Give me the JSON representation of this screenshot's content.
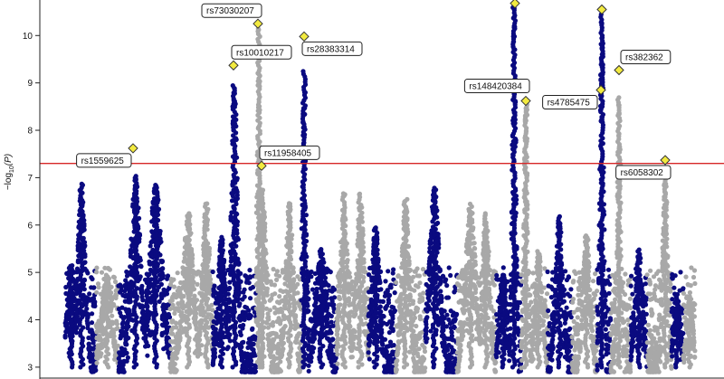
{
  "chart_data": {
    "type": "scatter",
    "subtype": "manhattan",
    "title": "",
    "xlabel": "",
    "ylabel_parts": {
      "prefix": "−log",
      "sub": "10",
      "suffix": "(P)"
    },
    "ylim": [
      2.75,
      10.75
    ],
    "yticks": [
      3,
      4,
      5,
      6,
      7,
      8,
      9,
      10
    ],
    "ytick_labels": [
      "3",
      "4",
      "5",
      "6",
      "7",
      "8",
      "9",
      "10"
    ],
    "threshold": {
      "value": 7.3,
      "color": "#d62728"
    },
    "colors": {
      "odd": "#0a0a80",
      "even": "#a8a8a8",
      "lead_snp": "#f2ea40",
      "lead_snp_edge": "#333333"
    },
    "chromosomes": [
      {
        "id": 1,
        "x0": 72,
        "x1": 106,
        "peaks": [
          {
            "x": 90,
            "max": 6.9,
            "width": 6
          },
          {
            "x": 78,
            "max": 5.2,
            "width": 6
          }
        ]
      },
      {
        "id": 2,
        "x0": 106,
        "x1": 131,
        "peaks": [
          {
            "x": 118,
            "max": 5.0,
            "width": 8
          }
        ]
      },
      {
        "id": 3,
        "x0": 131,
        "x1": 188,
        "peaks": [
          {
            "x": 150,
            "max": 7.05,
            "width": 8
          },
          {
            "x": 172,
            "max": 6.9,
            "width": 10
          }
        ]
      },
      {
        "id": 4,
        "x0": 188,
        "x1": 235,
        "peaks": [
          {
            "x": 208,
            "max": 6.3,
            "width": 8
          },
          {
            "x": 228,
            "max": 6.5,
            "width": 6
          }
        ]
      },
      {
        "id": 5,
        "x0": 235,
        "x1": 283,
        "peaks": [
          {
            "x": 259,
            "max": 9.0,
            "width": 5
          },
          {
            "x": 245,
            "max": 5.8,
            "width": 6
          }
        ]
      },
      {
        "id": 6,
        "x0": 283,
        "x1": 333,
        "peaks": [
          {
            "x": 286,
            "max": 10.2,
            "width": 3
          },
          {
            "x": 290,
            "max": 6.8,
            "width": 6
          },
          {
            "x": 320,
            "max": 6.5,
            "width": 6
          }
        ]
      },
      {
        "id": 7,
        "x0": 333,
        "x1": 372,
        "peaks": [
          {
            "x": 336,
            "max": 9.3,
            "width": 3
          },
          {
            "x": 355,
            "max": 5.5,
            "width": 8
          }
        ]
      },
      {
        "id": 8,
        "x0": 372,
        "x1": 407,
        "peaks": [
          {
            "x": 380,
            "max": 6.7,
            "width": 6
          },
          {
            "x": 398,
            "max": 6.7,
            "width": 6
          }
        ]
      },
      {
        "id": 9,
        "x0": 407,
        "x1": 437,
        "peaks": [
          {
            "x": 415,
            "max": 6.0,
            "width": 6
          }
        ]
      },
      {
        "id": 10,
        "x0": 437,
        "x1": 470,
        "peaks": [
          {
            "x": 448,
            "max": 6.6,
            "width": 6
          }
        ]
      },
      {
        "id": 11,
        "x0": 470,
        "x1": 505,
        "peaks": [
          {
            "x": 480,
            "max": 6.8,
            "width": 8
          }
        ]
      },
      {
        "id": 12,
        "x0": 505,
        "x1": 548,
        "peaks": [
          {
            "x": 520,
            "max": 6.5,
            "width": 8
          },
          {
            "x": 537,
            "max": 6.3,
            "width": 6
          }
        ]
      },
      {
        "id": 13,
        "x0": 548,
        "x1": 576,
        "peaks": [
          {
            "x": 568,
            "max": 10.7,
            "width": 3
          },
          {
            "x": 556,
            "max": 5.0,
            "width": 6
          }
        ]
      },
      {
        "id": 14,
        "x0": 576,
        "x1": 605,
        "peaks": [
          {
            "x": 581,
            "max": 8.6,
            "width": 3
          },
          {
            "x": 595,
            "max": 5.5,
            "width": 6
          }
        ]
      },
      {
        "id": 15,
        "x0": 605,
        "x1": 632,
        "peaks": [
          {
            "x": 618,
            "max": 6.2,
            "width": 6
          }
        ]
      },
      {
        "id": 16,
        "x0": 632,
        "x1": 660,
        "peaks": [
          {
            "x": 648,
            "max": 5.8,
            "width": 6
          }
        ]
      },
      {
        "id": 17,
        "x0": 660,
        "x1": 675,
        "peaks": [
          {
            "x": 665,
            "max": 10.5,
            "width": 3
          }
        ]
      },
      {
        "id": 18,
        "x0": 675,
        "x1": 697,
        "peaks": [
          {
            "x": 684,
            "max": 8.7,
            "width": 3
          }
        ]
      },
      {
        "id": 19,
        "x0": 697,
        "x1": 715,
        "peaks": [
          {
            "x": 706,
            "max": 5.5,
            "width": 6
          }
        ]
      },
      {
        "id": 20,
        "x0": 715,
        "x1": 742,
        "peaks": [
          {
            "x": 735,
            "max": 7.2,
            "width": 4
          }
        ]
      },
      {
        "id": 21,
        "x0": 742,
        "x1": 755,
        "peaks": [
          {
            "x": 748,
            "max": 4.5,
            "width": 5
          }
        ]
      },
      {
        "id": 22,
        "x0": 755,
        "x1": 768,
        "peaks": [
          {
            "x": 762,
            "max": 4.5,
            "width": 5
          }
        ]
      }
    ],
    "lead_snps": [
      {
        "id": "rs1559625",
        "chr": 3,
        "x": 147,
        "p": 7.62
      },
      {
        "id": "rs10010217",
        "chr": 5,
        "x": 258,
        "p": 9.37
      },
      {
        "id": "rs73030207",
        "chr": 6,
        "x": 285,
        "p": 10.25
      },
      {
        "id": "rs11958405",
        "chr": 6,
        "x": 289,
        "p": 7.25
      },
      {
        "id": "rs28383314",
        "chr": 7,
        "x": 336,
        "p": 9.98
      },
      {
        "id": "rs148420384",
        "chr": 14,
        "x": 581,
        "p": 8.62
      },
      {
        "id": "rs4785475",
        "chr": 17,
        "x": 664,
        "p": 8.85
      },
      {
        "id": "rs382362",
        "chr": 18,
        "x": 684,
        "p": 9.27
      },
      {
        "id": "rs6058302",
        "chr": 20,
        "x": 735,
        "p": 7.37
      },
      {
        "id": "",
        "chr": 13,
        "x": 569,
        "p": 10.68
      },
      {
        "id": "",
        "chr": 17,
        "x": 665,
        "p": 10.55
      }
    ],
    "annotations": [
      {
        "text": "rs73030207",
        "snp": 2
      },
      {
        "text": "rs10010217",
        "snp": 1
      },
      {
        "text": "rs28383314",
        "snp": 4
      },
      {
        "text": "rs11958405",
        "snp": 3
      },
      {
        "text": "rs1559625",
        "snp": 0
      },
      {
        "text": "rs148420384",
        "snp": 5
      },
      {
        "text": "rs382362",
        "snp": 7
      },
      {
        "text": "rs4785475",
        "snp": 6
      },
      {
        "text": "rs6058302",
        "snp": 8
      }
    ]
  }
}
